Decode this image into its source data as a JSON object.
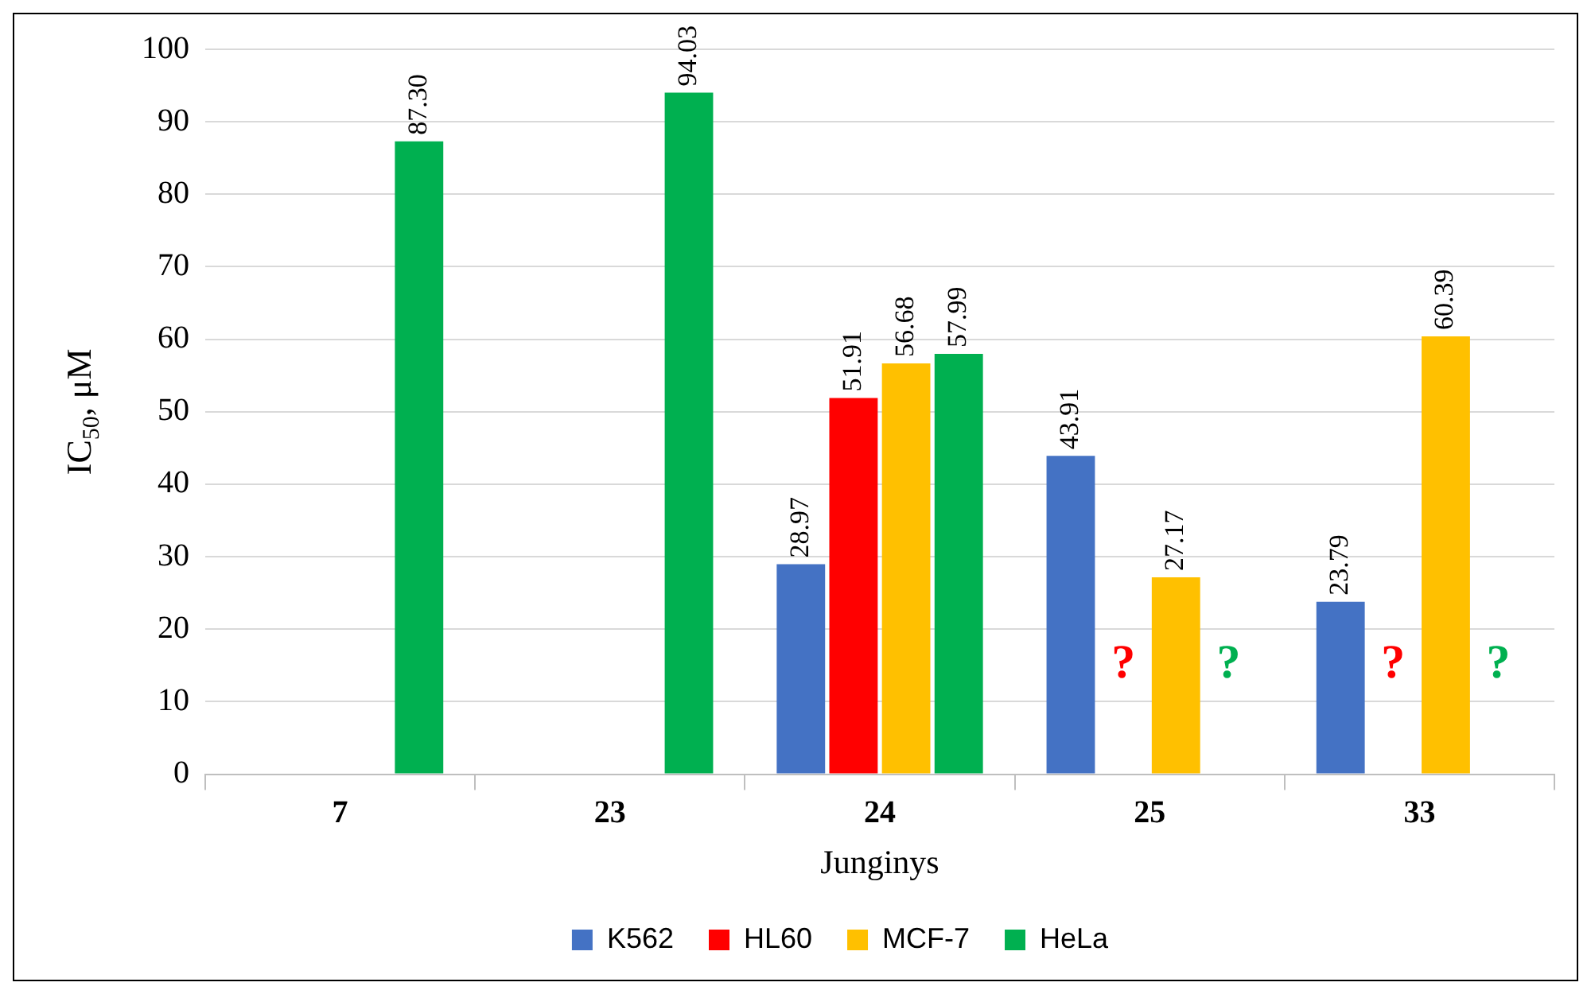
{
  "chart_data": {
    "type": "bar",
    "xlabel": "Junginys",
    "ylabel": "IC$_{50}$, μM",
    "categories": [
      "7",
      "23",
      "24",
      "25",
      "33"
    ],
    "series": [
      {
        "name": "K562",
        "color": "#4472c4",
        "values": [
          null,
          null,
          28.97,
          43.91,
          23.79
        ],
        "value_labels": [
          null,
          null,
          "28.97",
          "43.91",
          "23.79"
        ]
      },
      {
        "name": "HL60",
        "color": "#ff0000",
        "values": [
          null,
          null,
          51.91,
          null,
          null
        ],
        "value_labels": [
          null,
          null,
          "51.91",
          null,
          null
        ]
      },
      {
        "name": "MCF-7",
        "color": "#ffc000",
        "values": [
          null,
          null,
          56.68,
          27.17,
          60.39
        ],
        "value_labels": [
          null,
          null,
          "56.68",
          "27.17",
          "60.39"
        ]
      },
      {
        "name": "HeLa",
        "color": "#00b050",
        "values": [
          87.3,
          94.03,
          57.99,
          null,
          null
        ],
        "value_labels": [
          "87.30",
          "94.03",
          "57.99",
          null,
          null
        ]
      }
    ],
    "annotations": [
      {
        "text": "?",
        "x": "25",
        "y": 15
      },
      {
        "text": "?",
        "x": "25",
        "y": 15
      },
      {
        "text": "?",
        "x": "33",
        "y": 15
      },
      {
        "text": "?",
        "x": "33",
        "y": 15
      }
    ],
    "ylim": [
      0,
      100
    ],
    "yticks": [
      0,
      10,
      20,
      30,
      40,
      50,
      60,
      70,
      80,
      90,
      100
    ],
    "grid": "y",
    "legend": "bottom"
  }
}
